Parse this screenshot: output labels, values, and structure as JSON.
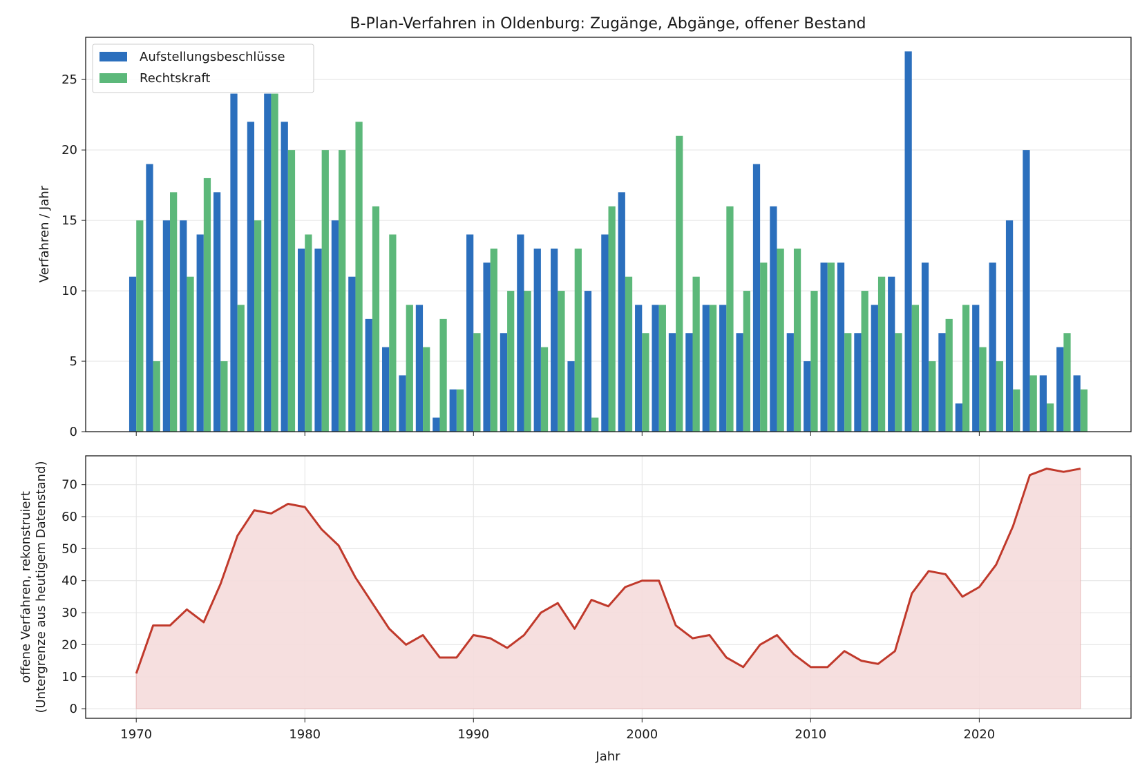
{
  "chart_data": [
    {
      "type": "bar",
      "title": "B-Plan-Verfahren in Oldenburg: Zugänge, Abgänge, offener Bestand",
      "xlabel": "",
      "ylabel": "Verfahren / Jahr",
      "ylim": [
        0,
        28
      ],
      "yticks": [
        0,
        5,
        10,
        15,
        20,
        25
      ],
      "xlim": [
        1967,
        2029
      ],
      "xticks": [
        1970,
        1980,
        1990,
        2000,
        2010,
        2020
      ],
      "grid": true,
      "legend_position": "top-left",
      "categories": [
        1970,
        1971,
        1972,
        1973,
        1974,
        1975,
        1976,
        1977,
        1978,
        1979,
        1980,
        1981,
        1982,
        1983,
        1984,
        1985,
        1986,
        1987,
        1988,
        1989,
        1990,
        1991,
        1992,
        1993,
        1994,
        1995,
        1996,
        1997,
        1998,
        1999,
        2000,
        2001,
        2002,
        2003,
        2004,
        2005,
        2006,
        2007,
        2008,
        2009,
        2010,
        2011,
        2012,
        2013,
        2014,
        2015,
        2016,
        2017,
        2018,
        2019,
        2020,
        2021,
        2022,
        2023,
        2024,
        2025,
        2026
      ],
      "series": [
        {
          "name": "Aufstellungsbeschlüsse",
          "color": "#2b6fbd",
          "values": [
            11,
            19,
            15,
            15,
            14,
            17,
            24,
            22,
            24,
            22,
            13,
            13,
            15,
            11,
            8,
            6,
            4,
            9,
            1,
            3,
            14,
            12,
            7,
            14,
            13,
            13,
            5,
            10,
            14,
            17,
            9,
            9,
            7,
            7,
            9,
            9,
            7,
            19,
            16,
            7,
            5,
            12,
            12,
            7,
            9,
            11,
            27,
            12,
            7,
            2,
            9,
            12,
            15,
            20,
            4,
            6,
            4
          ]
        },
        {
          "name": "Rechtskraft",
          "color": "#5cb87a",
          "values": [
            15,
            5,
            17,
            11,
            18,
            5,
            9,
            15,
            24,
            20,
            14,
            20,
            20,
            22,
            16,
            14,
            9,
            6,
            8,
            3,
            7,
            13,
            10,
            10,
            6,
            10,
            13,
            1,
            16,
            11,
            7,
            9,
            21,
            11,
            9,
            16,
            10,
            12,
            13,
            13,
            10,
            12,
            7,
            10,
            11,
            7,
            9,
            5,
            8,
            9,
            6,
            5,
            3,
            4,
            2,
            7,
            3
          ]
        }
      ]
    },
    {
      "type": "area",
      "xlabel": "Jahr",
      "ylabel_lines": [
        "offene Verfahren, rekonstruiert",
        "(Untergrenze aus heutigem Datenstand)"
      ],
      "ylim": [
        -3,
        79
      ],
      "yticks": [
        0,
        10,
        20,
        30,
        40,
        50,
        60,
        70
      ],
      "xlim": [
        1967,
        2029
      ],
      "xticks": [
        1970,
        1980,
        1990,
        2000,
        2010,
        2020
      ],
      "grid": true,
      "line_color": "#c0392b",
      "fill_color": "#f5dcdc",
      "x": [
        1970,
        1971,
        1972,
        1973,
        1974,
        1975,
        1976,
        1977,
        1978,
        1979,
        1980,
        1981,
        1982,
        1983,
        1984,
        1985,
        1986,
        1987,
        1988,
        1989,
        1990,
        1991,
        1992,
        1993,
        1994,
        1995,
        1996,
        1997,
        1998,
        1999,
        2000,
        2001,
        2002,
        2003,
        2004,
        2005,
        2006,
        2007,
        2008,
        2009,
        2010,
        2011,
        2012,
        2013,
        2014,
        2015,
        2016,
        2017,
        2018,
        2019,
        2020,
        2021,
        2022,
        2023,
        2024,
        2025,
        2026
      ],
      "values": [
        11,
        26,
        26,
        31,
        27,
        39,
        54,
        62,
        61,
        64,
        63,
        56,
        51,
        41,
        33,
        25,
        20,
        23,
        16,
        16,
        23,
        22,
        19,
        23,
        30,
        33,
        25,
        34,
        32,
        38,
        40,
        40,
        26,
        22,
        23,
        16,
        13,
        20,
        23,
        17,
        13,
        13,
        18,
        15,
        14,
        18,
        36,
        43,
        42,
        35,
        38,
        45,
        57,
        73,
        75,
        74,
        75
      ]
    }
  ]
}
